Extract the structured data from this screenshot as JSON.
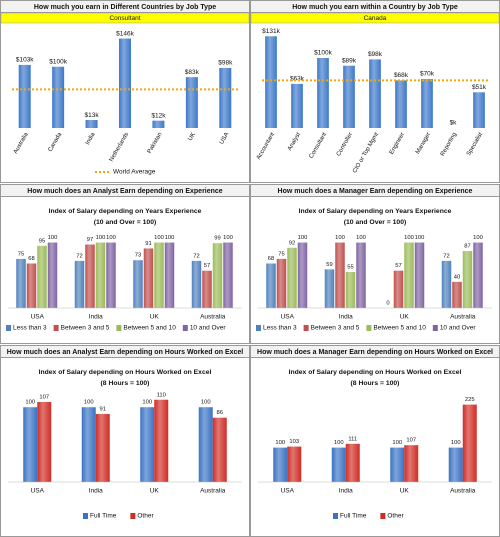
{
  "chart_data": [
    {
      "type": "bar",
      "title": "How much you earn in Different Countries by Job Type",
      "filter": "Consultant",
      "categories": [
        "Australia",
        "Canada",
        "India",
        "Netherlands",
        "Pakistan",
        "UK",
        "USA"
      ],
      "values": [
        103,
        100,
        13,
        146,
        12,
        83,
        98
      ],
      "value_labels": [
        "$103k",
        "$100k",
        "$13k",
        "$146k",
        "$12k",
        "$83k",
        "$98k"
      ],
      "color": "#3d78c9",
      "ylim": [
        0,
        160
      ],
      "average": {
        "name": "World Average",
        "value": 63,
        "color": "#f5a800"
      }
    },
    {
      "type": "bar",
      "title": "How much you earn within a Country by Job Type",
      "filter": "Canada",
      "categories": [
        "Accountant",
        "Analyst",
        "Consultant",
        "Controller",
        "CIO or Top Mgmt",
        "Engineer",
        "Manager",
        "Reporting",
        "Specialist"
      ],
      "values": [
        131,
        63,
        100,
        89,
        98,
        68,
        70,
        0,
        51
      ],
      "value_labels": [
        "$131k",
        "$63k",
        "$100k",
        "$89k",
        "$98k",
        "$68k",
        "$70k",
        "$k",
        "$51k"
      ],
      "color": "#3d78c9",
      "ylim": [
        0,
        140
      ],
      "average": {
        "value": 68,
        "color": "#f5a800"
      }
    },
    {
      "type": "grouped-bar",
      "title": "How much does an Analyst Earn depending on Experience",
      "subtitle": [
        "Index of Salary depending on Years Experience",
        "(10 and Over = 100)"
      ],
      "categories": [
        "USA",
        "India",
        "UK",
        "Australia"
      ],
      "ylim": [
        0,
        110
      ],
      "series": [
        {
          "name": "Less than 3",
          "color": "#4f81bd",
          "values": [
            75,
            72,
            73,
            72
          ]
        },
        {
          "name": "Between 3 and 5",
          "color": "#c0504d",
          "values": [
            68,
            97,
            91,
            57
          ]
        },
        {
          "name": "Between 5 and 10",
          "color": "#9bbb59",
          "values": [
            95,
            100,
            100,
            99
          ]
        },
        {
          "name": "10 and Over",
          "color": "#8064a2",
          "values": [
            100,
            100,
            100,
            100
          ]
        }
      ]
    },
    {
      "type": "grouped-bar",
      "title": "How much does a Manager Earn depending on Experience",
      "subtitle": [
        "Index of Salary depending on Years Experience",
        "(10 and Over = 100)"
      ],
      "categories": [
        "USA",
        "India",
        "UK",
        "Australia"
      ],
      "ylim": [
        0,
        110
      ],
      "series": [
        {
          "name": "Less than 3",
          "color": "#4f81bd",
          "values": [
            68,
            59,
            0,
            72
          ]
        },
        {
          "name": "Between 3 and 5",
          "color": "#c0504d",
          "values": [
            75,
            100,
            57,
            40
          ]
        },
        {
          "name": "Between 5 and 10",
          "color": "#9bbb59",
          "values": [
            92,
            55,
            100,
            87
          ]
        },
        {
          "name": "10 and Over",
          "color": "#8064a2",
          "values": [
            100,
            100,
            100,
            100
          ]
        }
      ]
    },
    {
      "type": "grouped-bar",
      "title": "How much does an Analyst Earn depending on Hours Worked on Excel",
      "subtitle": [
        "Index of Salary depending on Hours Worked on Excel",
        "(8 Hours = 100)"
      ],
      "categories": [
        "USA",
        "India",
        "UK",
        "Australia"
      ],
      "ylim": [
        0,
        115
      ],
      "series": [
        {
          "name": "Full Time",
          "color": "#3a73c4",
          "values": [
            100,
            100,
            100,
            100
          ]
        },
        {
          "name": "Other",
          "color": "#d02c25",
          "values": [
            107,
            91,
            110,
            86
          ]
        }
      ]
    },
    {
      "type": "grouped-bar",
      "title": "How much does a Manager Earn depending on Hours Worked on Excel",
      "subtitle": [
        "Index of Salary depending on Hours Worked on Excel",
        "(8 Hours = 100)"
      ],
      "categories": [
        "USA",
        "India",
        "UK",
        "Australia"
      ],
      "ylim": [
        0,
        250
      ],
      "series": [
        {
          "name": "Full Time",
          "color": "#3a73c4",
          "values": [
            100,
            100,
            100,
            100
          ]
        },
        {
          "name": "Other",
          "color": "#d02c25",
          "values": [
            103,
            111,
            107,
            225
          ]
        }
      ]
    }
  ]
}
